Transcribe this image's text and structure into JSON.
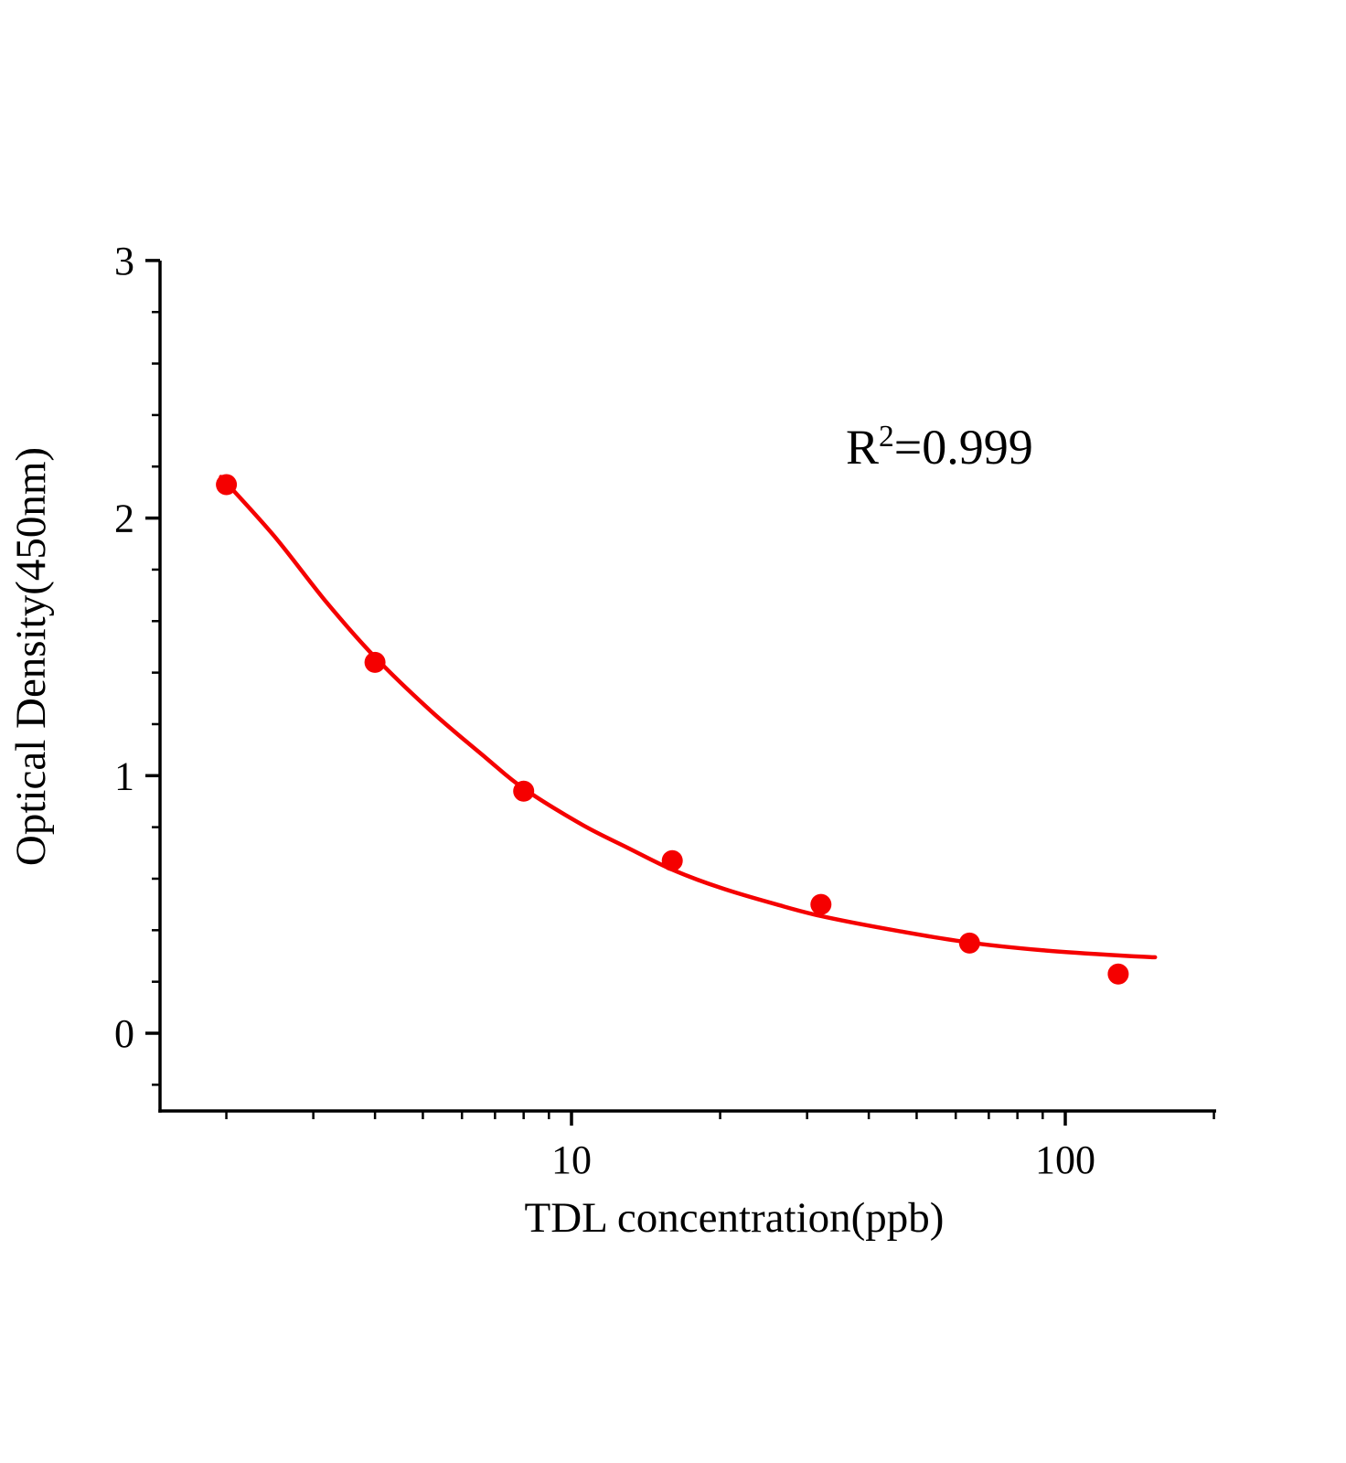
{
  "figure": {
    "background": "#ffffff",
    "axis_color": "#000000"
  },
  "chart_data": {
    "type": "scatter",
    "title": "",
    "xlabel": "TDL concentration(ppb)",
    "ylabel": "Optical Density(450nm)",
    "x_scale": "log10",
    "xlim": [
      1.5,
      205
    ],
    "ylim": [
      -0.3,
      3
    ],
    "x_major_ticks": [
      10,
      100
    ],
    "x_minor_ticks": [
      2,
      3,
      4,
      5,
      6,
      7,
      8,
      9,
      20,
      30,
      40,
      50,
      60,
      70,
      80,
      90,
      200
    ],
    "y_major_ticks": [
      0,
      1,
      2,
      3
    ],
    "y_minor_tick_step": 0.2,
    "grid": false,
    "legend": "none",
    "series": [
      {
        "name": "standard-curve-points",
        "type": "scatter",
        "color": "#f50000",
        "marker": "circle",
        "x": [
          2,
          4,
          8,
          16,
          32,
          64,
          128
        ],
        "y": [
          2.13,
          1.44,
          0.94,
          0.67,
          0.5,
          0.35,
          0.23
        ]
      }
    ],
    "fit": {
      "name": "4-parameter-logistic-fit",
      "color": "#f50000",
      "r_squared": 0.999,
      "r_squared_label": {
        "base": "R",
        "exponent": "2",
        "rest": "=0.999"
      },
      "curve_x": [
        1.95,
        2.5,
        3.2,
        4,
        5.2,
        6.7,
        8,
        10.5,
        13,
        16,
        20,
        26,
        32,
        45,
        64,
        90,
        128,
        152
      ],
      "curve_y": [
        2.16,
        1.93,
        1.67,
        1.46,
        1.25,
        1.07,
        0.95,
        0.81,
        0.72,
        0.635,
        0.565,
        0.5,
        0.455,
        0.4,
        0.352,
        0.322,
        0.302,
        0.295
      ]
    }
  }
}
